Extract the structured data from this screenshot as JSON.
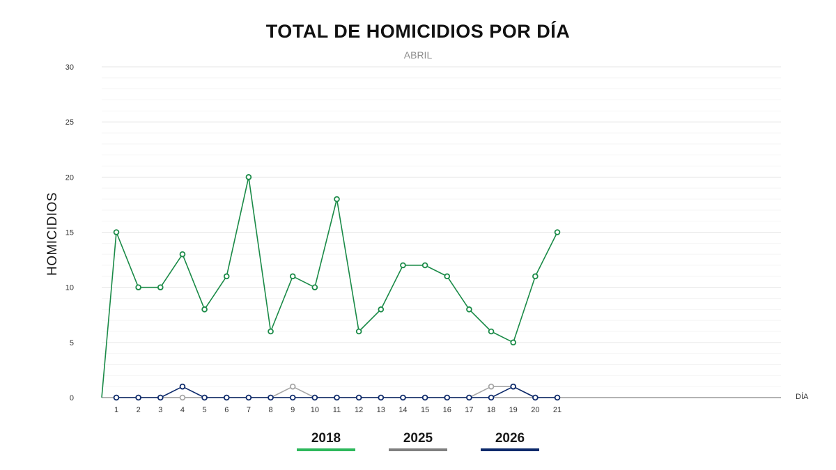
{
  "chart_data": {
    "type": "line",
    "title": "TOTAL DE HOMICIDIOS POR DÍA",
    "subtitle": "ABRIL",
    "xlabel": "DÍA",
    "ylabel": "HOMICIDIOS",
    "ylim": [
      0,
      30
    ],
    "yticks": [
      0,
      5,
      10,
      15,
      20,
      25,
      30
    ],
    "x": [
      1,
      2,
      3,
      4,
      5,
      6,
      7,
      8,
      9,
      10,
      11,
      12,
      13,
      14,
      15,
      16,
      17,
      18,
      19,
      20,
      21
    ],
    "grid": true,
    "legend_position": "bottom",
    "series": [
      {
        "name": "2018",
        "color": "#1a8a47",
        "legend_color": "#2eb85c",
        "start_value": 0,
        "values": [
          15,
          10,
          10,
          13,
          8,
          11,
          20,
          6,
          11,
          10,
          18,
          6,
          8,
          12,
          12,
          11,
          8,
          6,
          5,
          11,
          15
        ]
      },
      {
        "name": "2025",
        "color": "#a6a6a6",
        "legend_color": "#808080",
        "values": [
          0,
          0,
          0,
          0,
          0,
          0,
          0,
          0,
          1,
          0,
          0,
          0,
          0,
          0,
          0,
          0,
          0,
          1,
          1,
          0,
          0
        ]
      },
      {
        "name": "2026",
        "color": "#0d2a6b",
        "legend_color": "#0d2a6b",
        "values": [
          0,
          0,
          0,
          1,
          0,
          0,
          0,
          0,
          0,
          0,
          0,
          0,
          0,
          0,
          0,
          0,
          0,
          0,
          1,
          0,
          0
        ]
      }
    ]
  }
}
